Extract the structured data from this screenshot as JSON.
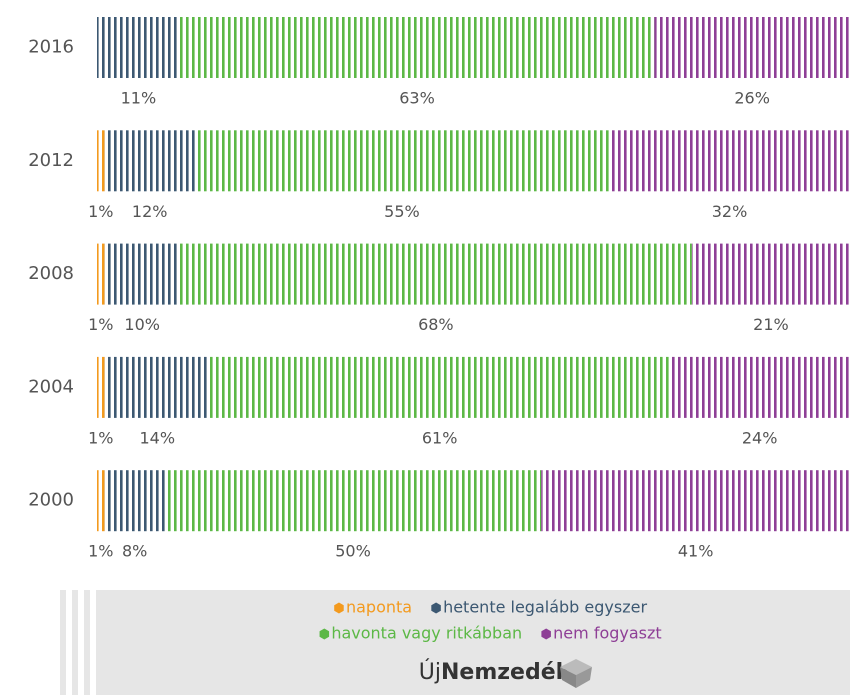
{
  "chart_data": {
    "type": "stacked-bar-horizontal",
    "categories": [
      "2016",
      "2012",
      "2008",
      "2004",
      "2000"
    ],
    "series": [
      {
        "name": "naponta",
        "color": "#f39a1e",
        "values": [
          null,
          1,
          1,
          1,
          1
        ],
        "value_labels": [
          null,
          "1%",
          "1%",
          "1%",
          "1%"
        ]
      },
      {
        "name": "hetente legalább egyszer",
        "color": "#3c5872",
        "values": [
          11,
          12,
          10,
          14,
          8
        ],
        "value_labels": [
          "11%",
          "12%",
          "10%",
          "14%",
          "8%"
        ]
      },
      {
        "name": "havonta vagy ritkábban",
        "color": "#5cb846",
        "values": [
          63,
          55,
          68,
          61,
          50
        ],
        "value_labels": [
          "63%",
          "55%",
          "68%",
          "61%",
          "50%"
        ]
      },
      {
        "name": "nem fogyaszt",
        "color": "#8e3f96",
        "values": [
          26,
          32,
          21,
          24,
          41
        ],
        "value_labels": [
          "26%",
          "32%",
          "21%",
          "24%",
          "41%"
        ]
      }
    ],
    "xlim": [
      0,
      100
    ],
    "logo": {
      "prefix": "Új",
      "name": "Nemzedék"
    }
  }
}
